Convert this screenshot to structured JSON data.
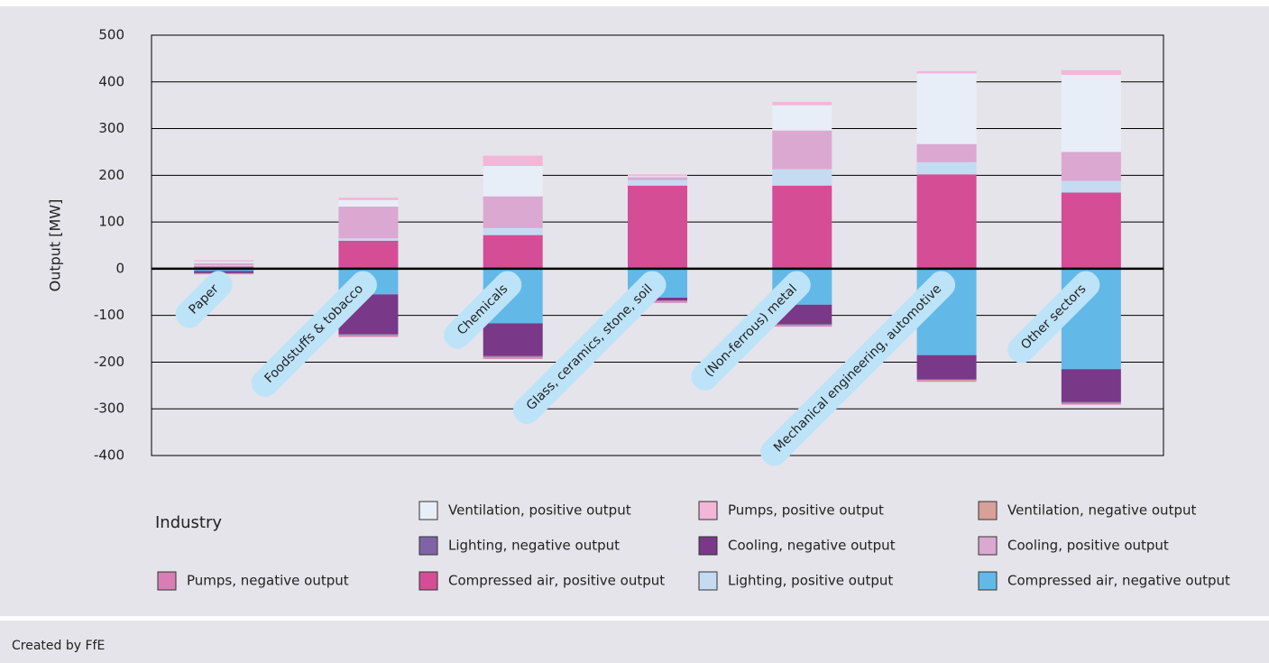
{
  "chart_data": {
    "type": "stacked_bar",
    "y_label": "Output [MW]",
    "x_label": "Industry",
    "categories": [
      "Paper",
      "Foodstuffs & tobacco",
      "Chemicals",
      "Glass, ceramics, stone, soil",
      "(Non-ferrous) metal",
      "Mechanical engineering, automotive",
      "Other sectors"
    ],
    "ylim": [
      -400,
      500
    ],
    "yticks": [
      -400,
      -300,
      -200,
      -100,
      0,
      100,
      200,
      300,
      400,
      500
    ],
    "grid": true,
    "series": [
      {
        "name": "Ventilation, positive output",
        "color": "#e8eef8",
        "values": [
          3,
          14,
          65,
          2,
          54,
          151,
          165
        ]
      },
      {
        "name": "Pumps, positive output",
        "color": "#f2b6d8",
        "values": [
          3,
          5,
          22,
          4,
          7,
          5,
          10
        ]
      },
      {
        "name": "Ventilation, negative output",
        "color": "#d8a098",
        "values": [
          -1,
          -1,
          -1,
          -1,
          -1,
          -1,
          -1
        ]
      },
      {
        "name": "Lighting, negative output",
        "color": "#7e64a4",
        "values": [
          -1,
          -2,
          -2,
          -1,
          -2,
          -1,
          -2
        ]
      },
      {
        "name": "Cooling, negative output",
        "color": "#7a3888",
        "values": [
          -4,
          -85,
          -70,
          -6,
          -41,
          -52,
          -70
        ]
      },
      {
        "name": "Cooling, positive output",
        "color": "#dba8d2",
        "values": [
          5,
          68,
          68,
          6,
          83,
          39,
          62
        ]
      },
      {
        "name": "Pumps, negative output",
        "color": "#d77fb5",
        "values": [
          -1,
          -3,
          -3,
          -3,
          -3,
          -3,
          -3
        ]
      },
      {
        "name": "Compressed air, positive output",
        "color": "#d44d95",
        "values": [
          5,
          60,
          72,
          178,
          178,
          202,
          163
        ]
      },
      {
        "name": "Lighting, positive output",
        "color": "#c5dbf2",
        "values": [
          2,
          5,
          15,
          12,
          35,
          26,
          25
        ]
      },
      {
        "name": "Compressed air, negative output",
        "color": "#62b9e8",
        "values": [
          -5,
          -55,
          -117,
          -62,
          -77,
          -185,
          -215
        ]
      }
    ]
  },
  "footer": "Created by FfE"
}
